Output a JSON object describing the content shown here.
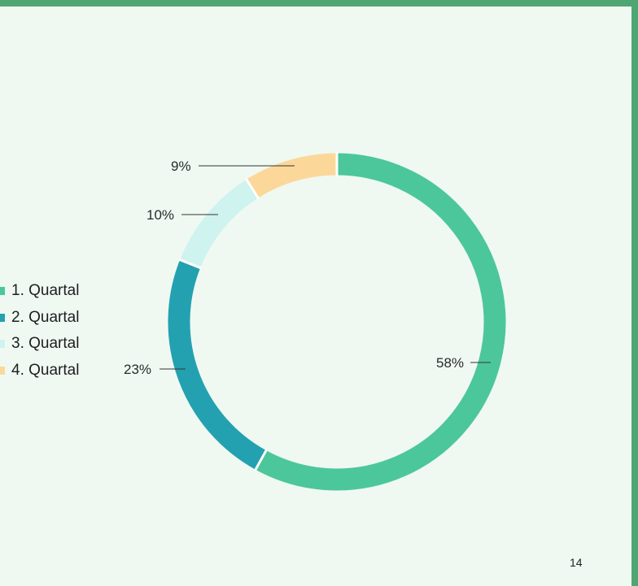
{
  "slide": {
    "page_number": "14"
  },
  "chart_data": {
    "type": "donut",
    "categories": [
      "1. Quartal",
      "2. Quartal",
      "3. Quartal",
      "4. Quartal"
    ],
    "values": [
      58,
      23,
      10,
      9
    ],
    "labels": [
      "58%",
      "23%",
      "10%",
      "9%"
    ],
    "colors": [
      "#4cc79b",
      "#23a1b0",
      "#cff3ef",
      "#fbd89a"
    ],
    "legend_position": "left"
  }
}
